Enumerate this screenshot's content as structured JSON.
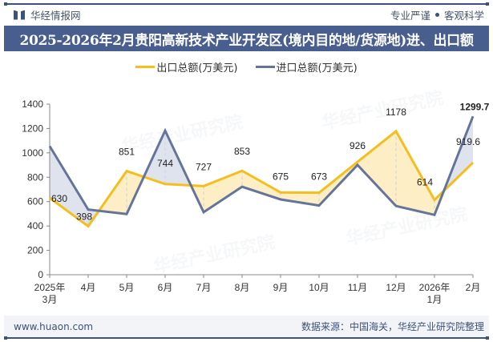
{
  "header": {
    "brand": "华经情报网",
    "slogan_left": "专业严谨",
    "slogan_right": "客观科学",
    "title": "2025-2026年2月贵阳高新技术产业开发区(境内目的地/货源地)进、出口额"
  },
  "legend": {
    "export_label": "出口总额(万美元)",
    "import_label": "进口总额(万美元)"
  },
  "watermark": "华经产业研究院",
  "footer": {
    "url": "www.huaon.com",
    "source": "数据来源：中国海关，华经产业研究院整理"
  },
  "colors": {
    "export": "#f5be1c",
    "import": "#65759a",
    "export_fill": "#fdeec5",
    "import_fill": "#dfe3ee",
    "header_bg": "#475e8e",
    "brand": "#3d5279"
  },
  "chart_data": {
    "type": "line",
    "title": "2025-2026年2月贵阳高新技术产业开发区(境内目的地/货源地)进、出口额",
    "categories": [
      "2025年\n3月",
      "4月",
      "5月",
      "6月",
      "7月",
      "8月",
      "9月",
      "10月",
      "11月",
      "12月",
      "2026年\n1月",
      "2月"
    ],
    "series": [
      {
        "name": "出口总额(万美元)",
        "values": [
          630,
          398,
          851,
          744,
          727,
          853,
          675,
          673,
          926,
          1178,
          614,
          919.6
        ],
        "labeled": true
      },
      {
        "name": "进口总额(万美元)",
        "values": [
          1055,
          535,
          498,
          1182,
          513,
          722,
          618,
          568,
          901,
          564,
          491,
          1299.7
        ],
        "labeled_last_only": true
      }
    ],
    "xlabel": "",
    "ylabel": "",
    "ylim": [
      0,
      1400
    ],
    "yticks": [
      0,
      200,
      400,
      600,
      800,
      1000,
      1200,
      1400
    ],
    "grid": false,
    "legend_position": "top"
  }
}
